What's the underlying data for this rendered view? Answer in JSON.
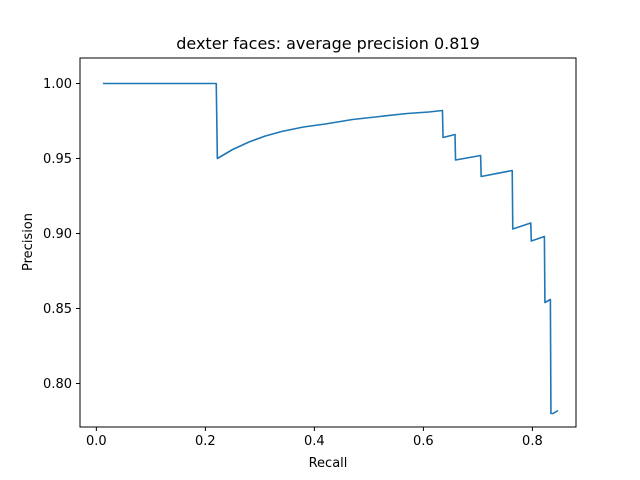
{
  "chart_data": {
    "type": "line",
    "title": "dexter faces: average precision 0.819",
    "xlabel": "Recall",
    "ylabel": "Precision",
    "xlim": [
      -0.03,
      0.88
    ],
    "ylim": [
      0.771,
      1.017
    ],
    "xticks": [
      0.0,
      0.2,
      0.4,
      0.6,
      0.8
    ],
    "xtick_labels": [
      "0.0",
      "0.2",
      "0.4",
      "0.6",
      "0.8"
    ],
    "yticks": [
      0.8,
      0.85,
      0.9,
      0.95,
      1.0
    ],
    "ytick_labels": [
      "0.80",
      "0.85",
      "0.90",
      "0.95",
      "1.00"
    ],
    "grid": false,
    "legend": "none",
    "series": [
      {
        "color": "#1f77b4",
        "x": [
          0.012,
          0.22,
          0.222,
          0.25,
          0.28,
          0.31,
          0.34,
          0.38,
          0.42,
          0.47,
          0.52,
          0.57,
          0.61,
          0.635,
          0.636,
          0.658,
          0.659,
          0.705,
          0.706,
          0.763,
          0.764,
          0.797,
          0.798,
          0.822,
          0.823,
          0.833,
          0.834,
          0.838,
          0.847
        ],
        "y": [
          1.0,
          1.0,
          0.95,
          0.956,
          0.961,
          0.965,
          0.968,
          0.971,
          0.973,
          0.976,
          0.978,
          0.98,
          0.981,
          0.982,
          0.964,
          0.966,
          0.949,
          0.952,
          0.938,
          0.942,
          0.903,
          0.907,
          0.895,
          0.898,
          0.854,
          0.856,
          0.78,
          0.78,
          0.782
        ]
      }
    ]
  }
}
